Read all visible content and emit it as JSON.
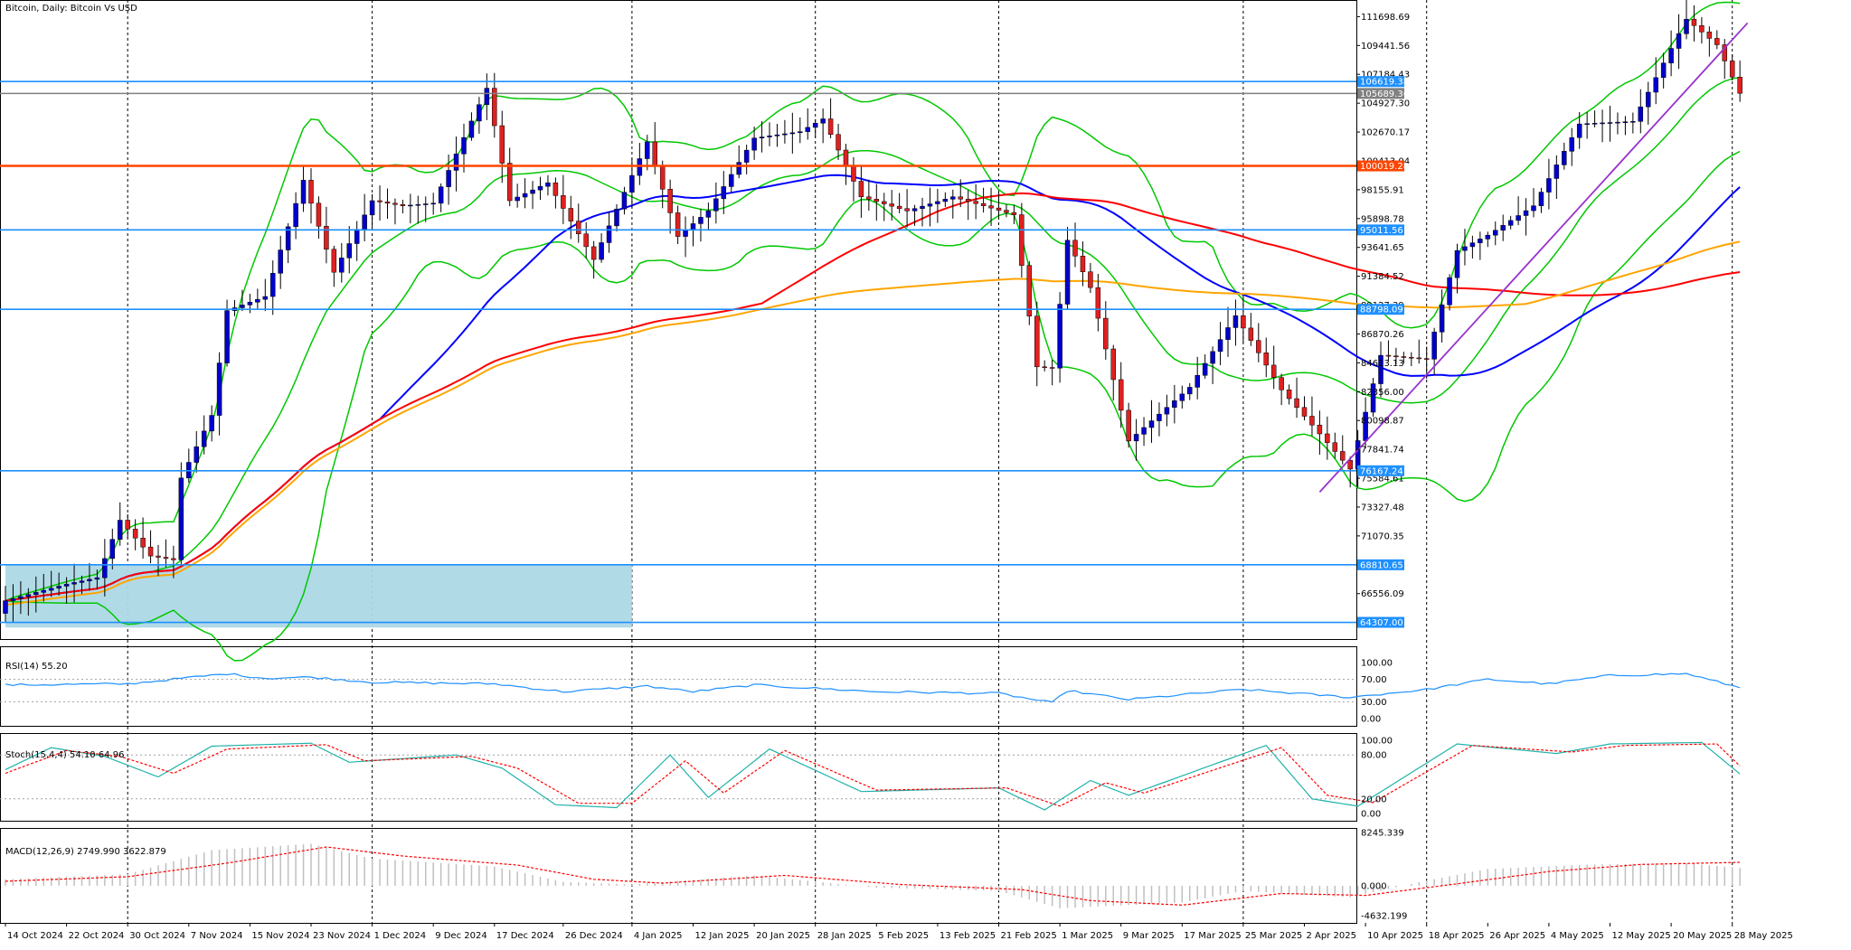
{
  "title": "Bitcoin, Daily:  Bitcoin Vs USD",
  "colors": {
    "bull_body": "#0000cd",
    "bear_body": "#e02020",
    "wick": "#000000",
    "bollinger": "#00c800",
    "ma_fast": "#0000ff",
    "ma_red": "#ff0000",
    "ma_orange": "#ffa500",
    "trendline": "#9932cc",
    "support_line": "#1e90ff",
    "key_level": "#ff4500",
    "zone": "#add8e6",
    "rsi_line": "#1e90ff",
    "stoch_main": "#20b2aa",
    "stoch_signal": "#ff0000",
    "macd_hist": "#c0c0c0",
    "macd_signal": "#ff0000",
    "grid": "#000000",
    "current_price_line": "#808080"
  },
  "chart_data": [
    {
      "type": "candlestick",
      "name": "main",
      "title": "Bitcoin, Daily:  Bitcoin Vs USD",
      "y_ticks": [
        "111698.69",
        "109441.56",
        "107184.43",
        "104927.30",
        "102670.17",
        "100413.04",
        "98155.91",
        "95898.78",
        "93641.65",
        "91384.52",
        "89127.39",
        "86870.26",
        "84613.13",
        "82356.00",
        "80098.87",
        "77841.74",
        "75584.61",
        "73327.48",
        "71070.35",
        "68813.22",
        "66556.09",
        "64298.96"
      ],
      "y_range": [
        63000,
        113000
      ],
      "x_labels": [
        "14 Oct 2024",
        "22 Oct 2024",
        "30 Oct 2024",
        "7 Nov 2024",
        "15 Nov 2024",
        "23 Nov 2024",
        "1 Dec 2024",
        "9 Dec 2024",
        "17 Dec 2024",
        "26 Dec 2024",
        "4 Jan 2025",
        "12 Jan 2025",
        "20 Jan 2025",
        "28 Jan 2025",
        "5 Feb 2025",
        "13 Feb 2025",
        "21 Feb 2025",
        "1 Mar 2025",
        "9 Mar 2025",
        "17 Mar 2025",
        "25 Mar 2025",
        "2 Apr 2025",
        "10 Apr 2025",
        "18 Apr 2025",
        "26 Apr 2025",
        "4 May 2025",
        "12 May 2025",
        "20 May 2025",
        "28 May 2025"
      ],
      "vertical_gridline_labels": [
        "30 Oct 2024",
        "1 Dec 2024",
        "4 Jan 2025",
        "28 Jan 2025",
        "21 Feb 2025",
        "25 Mar 2025",
        "18 Apr 2025",
        "28 May 2025"
      ],
      "level_lines": [
        {
          "value": 106619.38,
          "label": "106619.38",
          "color": "#1e90ff"
        },
        {
          "value": 105689.36,
          "label": "105689.36",
          "color": "#808080"
        },
        {
          "value": 100019.28,
          "label": "100019.28",
          "color": "#ff4500"
        },
        {
          "value": 95011.56,
          "label": "95011.56",
          "color": "#1e90ff"
        },
        {
          "value": 88798.09,
          "label": "88798.09",
          "color": "#1e90ff"
        },
        {
          "value": 76167.24,
          "label": "76167.24",
          "color": "#1e90ff"
        },
        {
          "value": 68810.65,
          "label": "68810.65",
          "color": "#1e90ff"
        },
        {
          "value": 64307.0,
          "label": "64307.00",
          "color": "#1e90ff"
        }
      ],
      "zone": {
        "start_date": "14 Oct 2024",
        "end_date": "4 Jan 2025",
        "low": 63900,
        "high": 68810.65
      },
      "trendline": {
        "start": {
          "date": "4 Apr 2025",
          "value": 74500
        },
        "end": {
          "date": "30 May 2025",
          "value": 111200
        }
      },
      "ohlc_anchor_closes": [
        {
          "date": "14 Oct 2024",
          "close": 66000
        },
        {
          "date": "22 Oct 2024",
          "close": 67300
        },
        {
          "date": "26 Oct 2024",
          "close": 67800
        },
        {
          "date": "29 Oct 2024",
          "close": 72300
        },
        {
          "date": "2 Nov 2024",
          "close": 69500
        },
        {
          "date": "5 Nov 2024",
          "close": 69200
        },
        {
          "date": "6 Nov 2024",
          "close": 75600
        },
        {
          "date": "10 Nov 2024",
          "close": 80500
        },
        {
          "date": "12 Nov 2024",
          "close": 88700
        },
        {
          "date": "17 Nov 2024",
          "close": 89800
        },
        {
          "date": "22 Nov 2024",
          "close": 98900
        },
        {
          "date": "26 Nov 2024",
          "close": 91700
        },
        {
          "date": "1 Dec 2024",
          "close": 97300
        },
        {
          "date": "5 Dec 2024",
          "close": 96900
        },
        {
          "date": "9 Dec 2024",
          "close": 97100
        },
        {
          "date": "16 Dec 2024",
          "close": 106100
        },
        {
          "date": "19 Dec 2024",
          "close": 97300
        },
        {
          "date": "24 Dec 2024",
          "close": 98700
        },
        {
          "date": "30 Dec 2024",
          "close": 92700
        },
        {
          "date": "6 Jan 2025",
          "close": 101900
        },
        {
          "date": "10 Jan 2025",
          "close": 94500
        },
        {
          "date": "14 Jan 2025",
          "close": 96500
        },
        {
          "date": "20 Jan 2025",
          "close": 102200
        },
        {
          "date": "26 Jan 2025",
          "close": 102700
        },
        {
          "date": "29 Jan 2025",
          "close": 103700
        },
        {
          "date": "3 Feb 2025",
          "close": 97600
        },
        {
          "date": "9 Feb 2025",
          "close": 96500
        },
        {
          "date": "15 Feb 2025",
          "close": 97600
        },
        {
          "date": "23 Feb 2025",
          "close": 96200
        },
        {
          "date": "26 Feb 2025",
          "close": 84300
        },
        {
          "date": "28 Feb 2025",
          "close": 84200
        },
        {
          "date": "2 Mar 2025",
          "close": 94200
        },
        {
          "date": "5 Mar 2025",
          "close": 90500
        },
        {
          "date": "10 Mar 2025",
          "close": 78500
        },
        {
          "date": "18 Mar 2025",
          "close": 82700
        },
        {
          "date": "24 Mar 2025",
          "close": 88300
        },
        {
          "date": "30 Mar 2025",
          "close": 82500
        },
        {
          "date": "8 Apr 2025",
          "close": 76300
        },
        {
          "date": "12 Apr 2025",
          "close": 85200
        },
        {
          "date": "18 Apr 2025",
          "close": 84900
        },
        {
          "date": "22 Apr 2025",
          "close": 93400
        },
        {
          "date": "26 Apr 2025",
          "close": 94600
        },
        {
          "date": "2 May 2025",
          "close": 96900
        },
        {
          "date": "8 May 2025",
          "close": 103300
        },
        {
          "date": "15 May 2025",
          "close": 103500
        },
        {
          "date": "22 May 2025",
          "close": 111500
        },
        {
          "date": "26 May 2025",
          "close": 109500
        },
        {
          "date": "29 May 2025",
          "close": 105700
        }
      ]
    },
    {
      "type": "line",
      "name": "rsi",
      "label": "RSI(14) 55.20",
      "y_ticks": [
        "100.00",
        "70.00",
        "30.00",
        "0.00"
      ],
      "y_range": [
        0,
        100
      ],
      "levels": [
        70,
        30
      ],
      "anchors": [
        {
          "date": "14 Oct 2024",
          "value": 60
        },
        {
          "date": "30 Oct 2024",
          "value": 62
        },
        {
          "date": "12 Nov 2024",
          "value": 80
        },
        {
          "date": "17 Nov 2024",
          "value": 72
        },
        {
          "date": "23 Nov 2024",
          "value": 74
        },
        {
          "date": "1 Dec 2024",
          "value": 65
        },
        {
          "date": "17 Dec 2024",
          "value": 62
        },
        {
          "date": "26 Dec 2024",
          "value": 48
        },
        {
          "date": "6 Jan 2025",
          "value": 58
        },
        {
          "date": "12 Jan 2025",
          "value": 48
        },
        {
          "date": "20 Jan 2025",
          "value": 60
        },
        {
          "date": "5 Feb 2025",
          "value": 48
        },
        {
          "date": "21 Feb 2025",
          "value": 45
        },
        {
          "date": "28 Feb 2025",
          "value": 28
        },
        {
          "date": "2 Mar 2025",
          "value": 50
        },
        {
          "date": "10 Mar 2025",
          "value": 34
        },
        {
          "date": "25 Mar 2025",
          "value": 52
        },
        {
          "date": "8 Apr 2025",
          "value": 38
        },
        {
          "date": "18 Apr 2025",
          "value": 52
        },
        {
          "date": "26 Apr 2025",
          "value": 70
        },
        {
          "date": "4 May 2025",
          "value": 62
        },
        {
          "date": "12 May 2025",
          "value": 77
        },
        {
          "date": "22 May 2025",
          "value": 80
        },
        {
          "date": "29 May 2025",
          "value": 55.2
        }
      ]
    },
    {
      "type": "line",
      "name": "stochastic",
      "label": "Stoch(15,4,4) 54.10 64.96",
      "y_ticks": [
        "100.00",
        "80.00",
        "20.00",
        "0.00"
      ],
      "y_range": [
        0,
        100
      ],
      "levels": [
        80,
        20
      ],
      "series": [
        {
          "name": "main",
          "anchors": [
            {
              "date": "14 Oct 2024",
              "value": 60
            },
            {
              "date": "20 Oct 2024",
              "value": 90
            },
            {
              "date": "27 Oct 2024",
              "value": 78
            },
            {
              "date": "3 Nov 2024",
              "value": 50
            },
            {
              "date": "10 Nov 2024",
              "value": 92
            },
            {
              "date": "23 Nov 2024",
              "value": 96
            },
            {
              "date": "28 Nov 2024",
              "value": 70
            },
            {
              "date": "12 Dec 2024",
              "value": 80
            },
            {
              "date": "18 Dec 2024",
              "value": 62
            },
            {
              "date": "25 Dec 2024",
              "value": 12
            },
            {
              "date": "2 Jan 2025",
              "value": 8
            },
            {
              "date": "9 Jan 2025",
              "value": 80
            },
            {
              "date": "14 Jan 2025",
              "value": 22
            },
            {
              "date": "22 Jan 2025",
              "value": 88
            },
            {
              "date": "3 Feb 2025",
              "value": 30
            },
            {
              "date": "21 Feb 2025",
              "value": 35
            },
            {
              "date": "27 Feb 2025",
              "value": 5
            },
            {
              "date": "5 Mar 2025",
              "value": 45
            },
            {
              "date": "10 Mar 2025",
              "value": 25
            },
            {
              "date": "28 Mar 2025",
              "value": 93
            },
            {
              "date": "3 Apr 2025",
              "value": 20
            },
            {
              "date": "9 Apr 2025",
              "value": 10
            },
            {
              "date": "22 Apr 2025",
              "value": 95
            },
            {
              "date": "5 May 2025",
              "value": 82
            },
            {
              "date": "12 May 2025",
              "value": 95
            },
            {
              "date": "24 May 2025",
              "value": 97
            },
            {
              "date": "29 May 2025",
              "value": 54.1
            }
          ]
        },
        {
          "name": "signal",
          "anchors": [
            {
              "date": "14 Oct 2024",
              "value": 55
            },
            {
              "date": "22 Oct 2024",
              "value": 86
            },
            {
              "date": "29 Oct 2024",
              "value": 78
            },
            {
              "date": "5 Nov 2024",
              "value": 55
            },
            {
              "date": "12 Nov 2024",
              "value": 88
            },
            {
              "date": "25 Nov 2024",
              "value": 94
            },
            {
              "date": "30 Nov 2024",
              "value": 72
            },
            {
              "date": "14 Dec 2024",
              "value": 78
            },
            {
              "date": "20 Dec 2024",
              "value": 62
            },
            {
              "date": "28 Dec 2024",
              "value": 14
            },
            {
              "date": "4 Jan 2025",
              "value": 14
            },
            {
              "date": "11 Jan 2025",
              "value": 72
            },
            {
              "date": "16 Jan 2025",
              "value": 28
            },
            {
              "date": "24 Jan 2025",
              "value": 86
            },
            {
              "date": "5 Feb 2025",
              "value": 32
            },
            {
              "date": "22 Feb 2025",
              "value": 35
            },
            {
              "date": "1 Mar 2025",
              "value": 10
            },
            {
              "date": "7 Mar 2025",
              "value": 42
            },
            {
              "date": "12 Mar 2025",
              "value": 28
            },
            {
              "date": "30 Mar 2025",
              "value": 90
            },
            {
              "date": "5 Apr 2025",
              "value": 25
            },
            {
              "date": "11 Apr 2025",
              "value": 15
            },
            {
              "date": "24 Apr 2025",
              "value": 93
            },
            {
              "date": "7 May 2025",
              "value": 84
            },
            {
              "date": "14 May 2025",
              "value": 93
            },
            {
              "date": "26 May 2025",
              "value": 95
            },
            {
              "date": "29 May 2025",
              "value": 64.96
            }
          ]
        }
      ]
    },
    {
      "type": "bar",
      "name": "macd",
      "label": "MACD(12,26,9) 2749.990 3622.879",
      "y_ticks": [
        "8245.339",
        "0.000",
        "-4632.199"
      ],
      "y_range": [
        -4632.199,
        8245.339
      ],
      "histogram_anchors": [
        {
          "date": "14 Oct 2024",
          "value": 1000
        },
        {
          "date": "30 Oct 2024",
          "value": 1800
        },
        {
          "date": "10 Nov 2024",
          "value": 5500
        },
        {
          "date": "23 Nov 2024",
          "value": 6500
        },
        {
          "date": "1 Dec 2024",
          "value": 4200
        },
        {
          "date": "17 Dec 2024",
          "value": 3000
        },
        {
          "date": "26 Dec 2024",
          "value": 600
        },
        {
          "date": "4 Jan 2025",
          "value": 200
        },
        {
          "date": "20 Jan 2025",
          "value": 1600
        },
        {
          "date": "5 Feb 2025",
          "value": -300
        },
        {
          "date": "21 Feb 2025",
          "value": -800
        },
        {
          "date": "1 Mar 2025",
          "value": -3500
        },
        {
          "date": "17 Mar 2025",
          "value": -2600
        },
        {
          "date": "25 Mar 2025",
          "value": -800
        },
        {
          "date": "8 Apr 2025",
          "value": -1800
        },
        {
          "date": "18 Apr 2025",
          "value": 800
        },
        {
          "date": "26 Apr 2025",
          "value": 2600
        },
        {
          "date": "10 May 2025",
          "value": 3300
        },
        {
          "date": "22 May 2025",
          "value": 3500
        },
        {
          "date": "29 May 2025",
          "value": 2749.99
        }
      ],
      "signal_anchors": [
        {
          "date": "14 Oct 2024",
          "value": 700
        },
        {
          "date": "30 Oct 2024",
          "value": 1400
        },
        {
          "date": "12 Nov 2024",
          "value": 3500
        },
        {
          "date": "25 Nov 2024",
          "value": 6000
        },
        {
          "date": "5 Dec 2024",
          "value": 4600
        },
        {
          "date": "20 Dec 2024",
          "value": 3200
        },
        {
          "date": "30 Dec 2024",
          "value": 1000
        },
        {
          "date": "8 Jan 2025",
          "value": 400
        },
        {
          "date": "24 Jan 2025",
          "value": 1600
        },
        {
          "date": "8 Feb 2025",
          "value": 200
        },
        {
          "date": "24 Feb 2025",
          "value": -600
        },
        {
          "date": "5 Mar 2025",
          "value": -2300
        },
        {
          "date": "17 Mar 2025",
          "value": -3000
        },
        {
          "date": "30 Mar 2025",
          "value": -1200
        },
        {
          "date": "10 Apr 2025",
          "value": -1500
        },
        {
          "date": "22 Apr 2025",
          "value": 300
        },
        {
          "date": "4 May 2025",
          "value": 2200
        },
        {
          "date": "16 May 2025",
          "value": 3300
        },
        {
          "date": "29 May 2025",
          "value": 3622.879
        }
      ]
    }
  ]
}
